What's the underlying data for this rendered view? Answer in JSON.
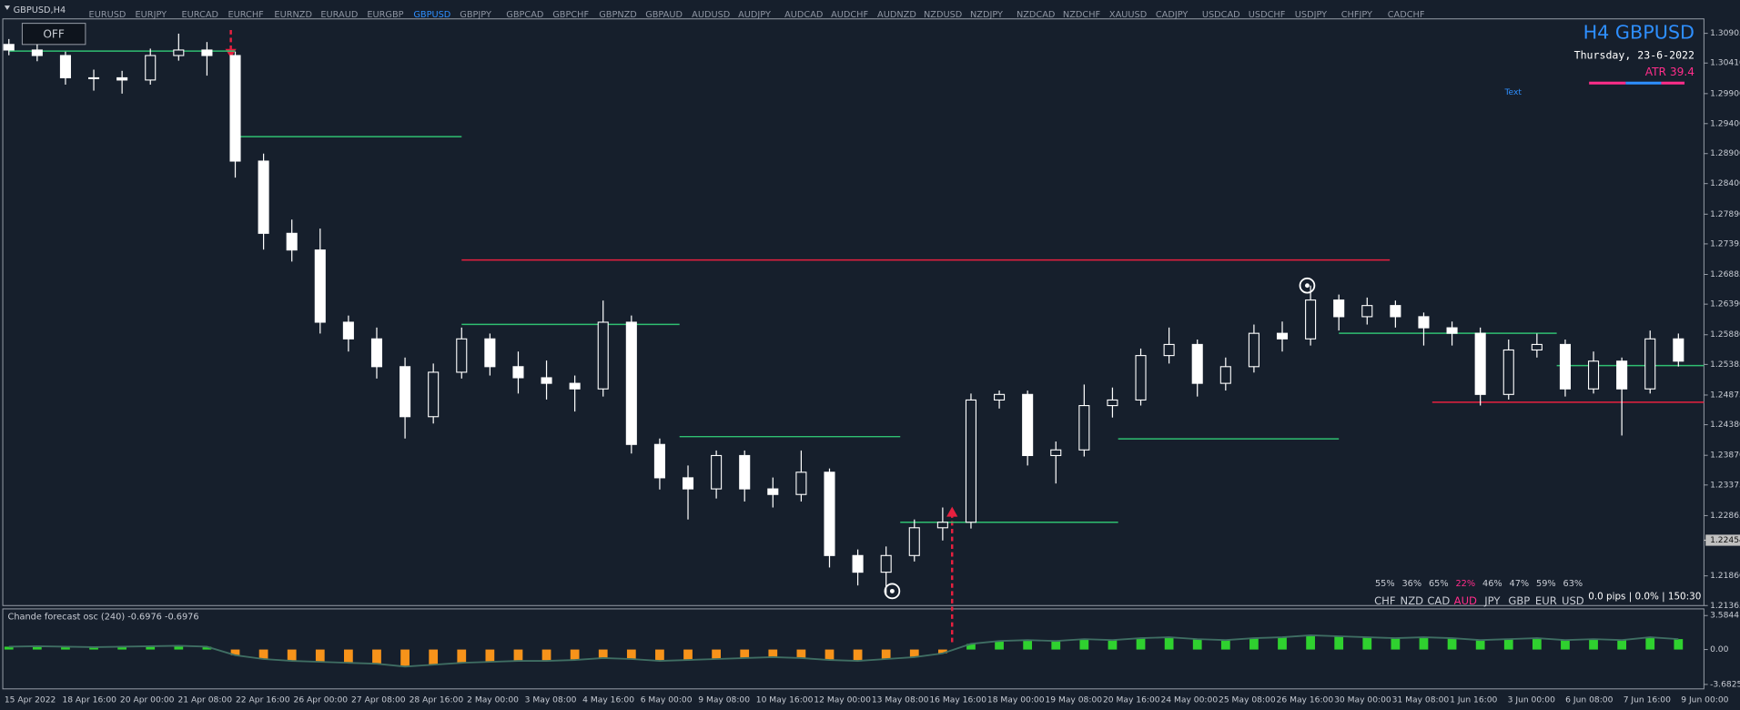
{
  "window": {
    "title": "GBPUSD,H4",
    "button": "OFF"
  },
  "symbols": [
    "EURUSD",
    "EURJPY",
    "EURCAD",
    "EURCHF",
    "EURNZD",
    "EURAUD",
    "EURGBP",
    "GBPUSD",
    "GBPJPY",
    "GBPCAD",
    "GBPCHF",
    "GBPNZD",
    "GBPAUD",
    "AUDUSD",
    "AUDJPY",
    "AUDCAD",
    "AUDCHF",
    "AUDNZD",
    "NZDUSD",
    "NZDJPY",
    "NZDCAD",
    "NZDCHF",
    "XAUUSD",
    "CADJPY",
    "USDCAD",
    "USDCHF",
    "USDJPY",
    "CHFJPY",
    "CADCHF"
  ],
  "active_symbol": "GBPUSD",
  "chart_data": {
    "type": "candlestick",
    "open": [
      1.3072,
      1.30627,
      1.30535,
      1.30164,
      1.30164,
      1.30127,
      1.30535,
      1.30627,
      1.30535,
      1.28775,
      1.27571,
      1.27293,
      1.26089,
      1.25811,
      1.25348,
      1.24514,
      1.25255,
      1.25811,
      1.25348,
      1.25163,
      1.2507,
      1.24977,
      1.26089,
      1.24051,
      1.23495,
      1.2331,
      1.23866,
      1.2331,
      1.23217,
      1.23588,
      1.22199,
      1.21921,
      1.22199,
      1.22662,
      1.22754,
      1.24792,
      1.24885,
      1.23866,
      1.2396,
      1.24699,
      1.24792,
      1.25533,
      1.25718,
      1.2507,
      1.25348,
      1.25904,
      1.25811,
      1.26459,
      1.26181,
      1.26367,
      1.26181,
      1.25996,
      1.25904,
      1.24885,
      1.25626,
      1.25718,
      1.24977,
      1.2544,
      1.24977,
      1.25811
    ],
    "high": [
      1.3081,
      1.3072,
      1.306,
      1.303,
      1.3028,
      1.3065,
      1.309,
      1.3076,
      1.306,
      1.289,
      1.278,
      1.2765,
      1.262,
      1.26,
      1.255,
      1.254,
      1.26,
      1.259,
      1.256,
      1.2545,
      1.252,
      1.2645,
      1.262,
      1.2415,
      1.237,
      1.2395,
      1.2395,
      1.235,
      1.2395,
      1.2365,
      1.223,
      1.2235,
      1.228,
      1.23,
      1.249,
      1.2495,
      1.2495,
      1.241,
      1.2505,
      1.25,
      1.2565,
      1.26,
      1.258,
      1.255,
      1.2605,
      1.261,
      1.267,
      1.2655,
      1.265,
      1.2645,
      1.2625,
      1.261,
      1.26,
      1.258,
      1.259,
      1.258,
      1.256,
      1.255,
      1.2595,
      1.259
    ],
    "low": [
      1.3054,
      1.3044,
      1.3005,
      1.2995,
      1.299,
      1.3005,
      1.3045,
      1.302,
      1.285,
      1.273,
      1.271,
      1.259,
      1.256,
      1.2515,
      1.2415,
      1.244,
      1.2515,
      1.252,
      1.249,
      1.248,
      1.246,
      1.2485,
      1.239,
      1.233,
      1.228,
      1.2315,
      1.231,
      1.23,
      1.231,
      1.22,
      1.217,
      1.2155,
      1.221,
      1.2245,
      1.2265,
      1.2465,
      1.237,
      1.234,
      1.2385,
      1.245,
      1.247,
      1.254,
      1.2485,
      1.2495,
      1.2525,
      1.256,
      1.257,
      1.2595,
      1.2605,
      1.26,
      1.257,
      1.257,
      1.247,
      1.248,
      1.255,
      1.2485,
      1.249,
      1.242,
      1.249,
      1.2535
    ],
    "close": [
      1.30627,
      1.30535,
      1.30164,
      1.30164,
      1.30127,
      1.30535,
      1.30627,
      1.30535,
      1.28775,
      1.27571,
      1.27293,
      1.26089,
      1.25811,
      1.25348,
      1.24514,
      1.25255,
      1.25811,
      1.25348,
      1.25163,
      1.2507,
      1.24977,
      1.26089,
      1.24051,
      1.23495,
      1.2331,
      1.23866,
      1.2331,
      1.23217,
      1.23588,
      1.22199,
      1.21921,
      1.22199,
      1.22662,
      1.22754,
      1.24792,
      1.24885,
      1.23866,
      1.2396,
      1.24699,
      1.24792,
      1.25533,
      1.25718,
      1.2507,
      1.25348,
      1.25904,
      1.25811,
      1.26459,
      1.26181,
      1.26367,
      1.26181,
      1.25996,
      1.25904,
      1.24885,
      1.25626,
      1.25718,
      1.24977,
      1.2544,
      1.24977,
      1.25811,
      1.2544
    ],
    "bull_color": "#161f2c",
    "bear_color": "#ffffff",
    "wick_color": "#ffffff",
    "ylim": [
      1.21365,
      1.31146
    ],
    "yticks": [
      1.30905,
      {
        "value": 1.3041,
        "label": "1.30410"
      },
      {
        "value": 1.299,
        "label": "1.29900"
      },
      {
        "value": 1.294,
        "label": "1.29400"
      },
      {
        "value": 1.289,
        "label": "1.28900"
      },
      {
        "value": 1.284,
        "label": "1.28400"
      },
      {
        "value": 1.2789,
        "label": "1.27890"
      },
      1.27395,
      1.26885,
      {
        "value": 1.2639,
        "label": "1.26390"
      },
      {
        "value": 1.2588,
        "label": "1.25880"
      },
      1.25385,
      1.24875,
      {
        "value": 1.2438,
        "label": "1.24380"
      },
      {
        "value": 1.2387,
        "label": "1.23870"
      },
      1.23375,
      1.22865,
      {
        "value": 1.2186,
        "label": "1.21860"
      },
      1.21365
    ],
    "current_price": 1.22454,
    "levels": [
      {
        "price": 1.30609,
        "color": "#2fbf71",
        "start": 0,
        "end": 8
      },
      {
        "price": 1.29182,
        "color": "#2fbf71",
        "start": 8,
        "end": 16
      },
      {
        "price": 1.27126,
        "color": "#e8203f",
        "start": 16,
        "end": 48.8
      },
      {
        "price": 1.26052,
        "color": "#2fbf71",
        "start": 16,
        "end": 23.7
      },
      {
        "price": 1.24181,
        "color": "#2fbf71",
        "start": 23.7,
        "end": 31.5
      },
      {
        "price": 1.22754,
        "color": "#2fbf71",
        "start": 31.5,
        "end": 39.2
      },
      {
        "price": 1.24144,
        "color": "#2fbf71",
        "start": 39.2,
        "end": 47
      },
      {
        "price": 1.25904,
        "color": "#2fbf71",
        "start": 47,
        "end": 54.7
      },
      {
        "price": 1.24755,
        "color": "#e8203f",
        "start": 50.3,
        "end": 59.9
      },
      {
        "price": 1.25366,
        "color": "#2fbf71",
        "start": 54.7,
        "end": 59.9
      }
    ],
    "x_labels": [
      "15 Apr 2022",
      "18 Apr 16:00",
      "20 Apr 00:00",
      "21 Apr 08:00",
      "22 Apr 16:00",
      "26 Apr 00:00",
      "27 Apr 08:00",
      "28 Apr 16:00",
      "2 May 00:00",
      "3 May 08:00",
      "4 May 16:00",
      "6 May 00:00",
      "9 May 08:00",
      "10 May 16:00",
      "12 May 00:00",
      "13 May 08:00",
      "16 May 16:00",
      "18 May 00:00",
      "19 May 08:00",
      "20 May 16:00",
      "24 May 00:00",
      "25 May 08:00",
      "26 May 16:00",
      "30 May 00:00",
      "31 May 08:00",
      "1 Jun 16:00",
      "3 Jun 00:00",
      "6 Jun 08:00",
      "7 Jun 16:00",
      "9 Jun 00:00"
    ]
  },
  "indicator": {
    "type": "histogram",
    "label": "Chande forecast osc (240) -0.6976 -0.6976",
    "values": [
      0.3,
      0.35,
      0.3,
      0.25,
      0.3,
      0.35,
      0.4,
      0.3,
      -0.6,
      -1.0,
      -1.2,
      -1.3,
      -1.4,
      -1.5,
      -1.8,
      -1.6,
      -1.4,
      -1.3,
      -1.2,
      -1.2,
      -1.1,
      -0.9,
      -1.0,
      -1.2,
      -1.1,
      -1.0,
      -0.9,
      -0.8,
      -0.9,
      -1.1,
      -1.2,
      -1.0,
      -0.8,
      -0.4,
      0.6,
      0.9,
      1.0,
      0.9,
      1.1,
      1.0,
      1.2,
      1.3,
      1.1,
      1.0,
      1.2,
      1.3,
      1.5,
      1.4,
      1.3,
      1.2,
      1.3,
      1.2,
      1.0,
      1.1,
      1.2,
      1.0,
      1.1,
      1.0,
      1.3,
      1.1
    ],
    "up_color": "#2fd12f",
    "down_color": "#f7931a",
    "line_color": "#3f6e63",
    "ylim": [
      -3.6825,
      3.5844
    ],
    "yticks": [
      3.5844,
      {
        "value": 0,
        "label": "0.00"
      },
      -3.6825
    ]
  },
  "info": {
    "title": "H4 GBPUSD",
    "date": "Thursday, 23-6-2022",
    "atr": "ATR 39.4",
    "text": "Text"
  },
  "strength": [
    {
      "percent": "55%",
      "currency": "CHF",
      "color": "#c8ccd4"
    },
    {
      "percent": "36%",
      "currency": "NZD",
      "color": "#c8ccd4"
    },
    {
      "percent": "65%",
      "currency": "CAD",
      "color": "#c8ccd4"
    },
    {
      "percent": "22%",
      "currency": "AUD",
      "color": "#ff2d8a"
    },
    {
      "percent": "46%",
      "currency": "JPY",
      "color": "#c8ccd4"
    },
    {
      "percent": "47%",
      "currency": "GBP",
      "color": "#c8ccd4"
    },
    {
      "percent": "59%",
      "currency": "EUR",
      "color": "#c8ccd4"
    },
    {
      "percent": "63%",
      "currency": "USD",
      "color": "#c8ccd4"
    }
  ],
  "status": "0.0 pips | 0.0% | 150:30"
}
